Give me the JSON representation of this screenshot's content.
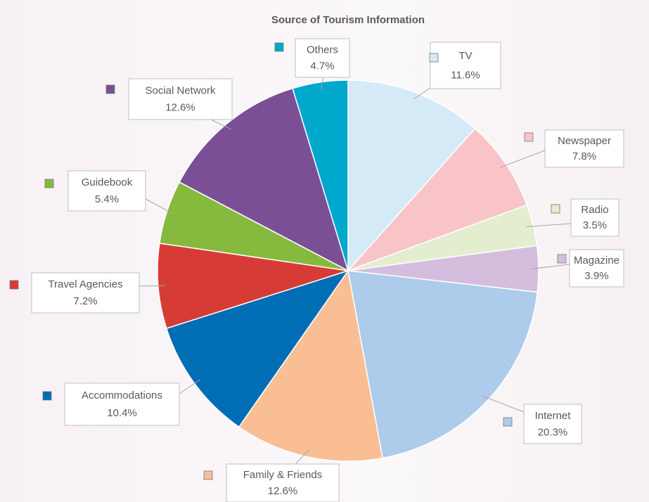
{
  "chart_data": {
    "type": "pie",
    "title": "Source of Tourism Information",
    "categories": [
      "TV",
      "Newspaper",
      "Radio",
      "Magazine",
      "Internet",
      "Family & Friends",
      "Accommodations",
      "Travel Agencies",
      "Guidebook",
      "Social Network",
      "Others"
    ],
    "values": [
      11.6,
      7.8,
      3.5,
      3.9,
      20.3,
      12.6,
      10.4,
      7.2,
      5.4,
      12.6,
      4.7
    ],
    "value_labels": [
      "11.6%",
      "7.8%",
      "3.5%",
      "3.9%",
      "20.3%",
      "12.6%",
      "10.4%",
      "7.2%",
      "5.4%",
      "12.6%",
      "4.7%"
    ],
    "colors": [
      "#d4ebf7",
      "#f9c4c8",
      "#e3eecf",
      "#d5bedd",
      "#adcbea",
      "#f9be93",
      "#006db5",
      "#d63c35",
      "#86ba3f",
      "#7a4f96",
      "#00a8cc"
    ]
  }
}
